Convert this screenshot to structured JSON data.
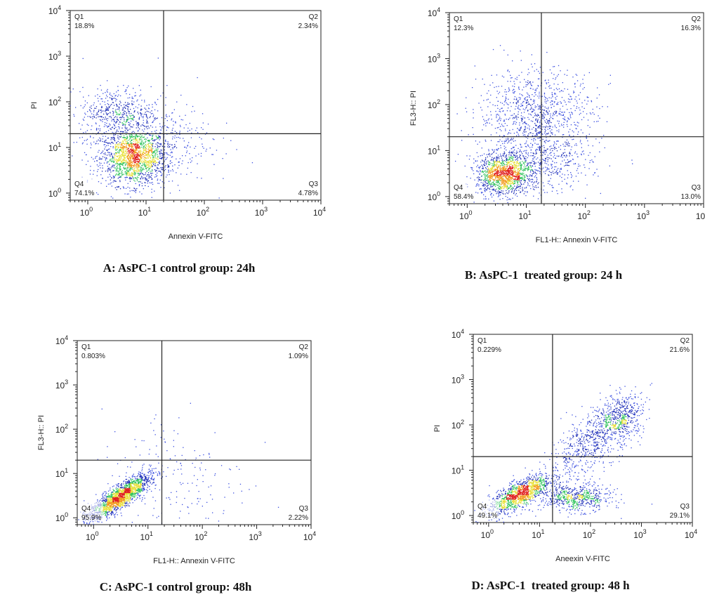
{
  "chart_data": [
    {
      "type": "scatter",
      "panel_id": "A",
      "caption": "A: AsPC-1 control group: 24h",
      "xlabel": "Annexin V-FITC",
      "ylabel": "PI",
      "x_scale": "log",
      "y_scale": "log",
      "xlim": [
        0.5,
        10000
      ],
      "ylim": [
        0.7,
        10000
      ],
      "x_ticks": [
        1,
        10,
        100,
        1000,
        10000
      ],
      "y_ticks": [
        1,
        10,
        100,
        1000,
        10000
      ],
      "gate": {
        "x": 20,
        "y": 20
      },
      "quadrants": [
        {
          "name": "Q1",
          "percent": "18.8%"
        },
        {
          "name": "Q2",
          "percent": "2.34%"
        },
        {
          "name": "Q3",
          "percent": "4.78%"
        },
        {
          "name": "Q4",
          "percent": "74.1%"
        }
      ],
      "clusters": [
        {
          "cx": 6,
          "cy": 6,
          "sx": 0.28,
          "sy": 0.3,
          "n": 1500
        },
        {
          "cx": 3,
          "cy": 60,
          "sx": 0.3,
          "sy": 0.28,
          "n": 400
        },
        {
          "cx": 10,
          "cy": 15,
          "sx": 0.55,
          "sy": 0.5,
          "n": 500
        }
      ]
    },
    {
      "type": "scatter",
      "panel_id": "B",
      "caption": "B: AsPC-1  treated group: 24 h",
      "xlabel": "FL1-H:: Annexin V-FITC",
      "ylabel": "FL3-H:: PI",
      "x_scale": "log",
      "y_scale": "log",
      "xlim": [
        0.5,
        10000
      ],
      "ylim": [
        0.7,
        10000
      ],
      "x_ticks": [
        1,
        10,
        100,
        1000,
        10000
      ],
      "y_ticks": [
        1,
        10,
        100,
        1000,
        10000
      ],
      "gate": {
        "x": 18,
        "y": 20
      },
      "quadrants": [
        {
          "name": "Q1",
          "percent": "12.3%"
        },
        {
          "name": "Q2",
          "percent": "16.3%"
        },
        {
          "name": "Q3",
          "percent": "13.0%"
        },
        {
          "name": "Q4",
          "percent": "58.4%"
        }
      ],
      "clusters": [
        {
          "cx": 4,
          "cy": 3,
          "sx": 0.22,
          "sy": 0.22,
          "n": 1200
        },
        {
          "cx": 15,
          "cy": 60,
          "sx": 0.5,
          "sy": 0.5,
          "n": 1000
        },
        {
          "cx": 15,
          "cy": 5,
          "sx": 0.45,
          "sy": 0.3,
          "n": 500
        }
      ]
    },
    {
      "type": "scatter",
      "panel_id": "C",
      "caption": "C: AsPC-1 control group: 48h",
      "xlabel": "FL1-H:: Annexin V-FITC",
      "ylabel": "FL3-H:: PI",
      "x_scale": "log",
      "y_scale": "log",
      "xlim": [
        0.5,
        10000
      ],
      "ylim": [
        0.7,
        10000
      ],
      "x_ticks": [
        1,
        10,
        100,
        1000,
        10000
      ],
      "y_ticks": [
        1,
        10,
        100,
        1000,
        10000
      ],
      "gate": {
        "x": 18,
        "y": 20
      },
      "quadrants": [
        {
          "name": "Q1",
          "percent": "0.803%"
        },
        {
          "name": "Q2",
          "percent": "1.09%"
        },
        {
          "name": "Q3",
          "percent": "2.22%"
        },
        {
          "name": "Q4",
          "percent": "95.9%"
        }
      ],
      "clusters": [
        {
          "cx": 3,
          "cy": 3,
          "sx": 0.28,
          "sy": 0.25,
          "n": 1800,
          "corr": 0.85
        },
        {
          "cx": 30,
          "cy": 8,
          "sx": 0.7,
          "sy": 0.8,
          "n": 200
        }
      ]
    },
    {
      "type": "scatter",
      "panel_id": "D",
      "caption": "D: AsPC-1  treated group: 48 h",
      "xlabel": "Aneexin V-FITC",
      "ylabel": "PI",
      "x_scale": "log",
      "y_scale": "log",
      "xlim": [
        0.5,
        10000
      ],
      "ylim": [
        0.7,
        10000
      ],
      "x_ticks": [
        1,
        10,
        100,
        1000,
        10000
      ],
      "y_ticks": [
        1,
        10,
        100,
        1000,
        10000
      ],
      "gate": {
        "x": 18,
        "y": 20
      },
      "quadrants": [
        {
          "name": "Q1",
          "percent": "0.229%"
        },
        {
          "name": "Q2",
          "percent": "21.6%"
        },
        {
          "name": "Q3",
          "percent": "29.1%"
        },
        {
          "name": "Q4",
          "percent": "49.1%"
        }
      ],
      "clusters": [
        {
          "cx": 4,
          "cy": 3,
          "sx": 0.3,
          "sy": 0.22,
          "n": 1200,
          "corr": 0.75
        },
        {
          "cx": 50,
          "cy": 2.5,
          "sx": 0.35,
          "sy": 0.15,
          "n": 600
        },
        {
          "cx": 120,
          "cy": 50,
          "sx": 0.45,
          "sy": 0.45,
          "n": 700,
          "corr": 0.7
        },
        {
          "cx": 400,
          "cy": 150,
          "sx": 0.2,
          "sy": 0.25,
          "n": 350
        }
      ]
    }
  ]
}
